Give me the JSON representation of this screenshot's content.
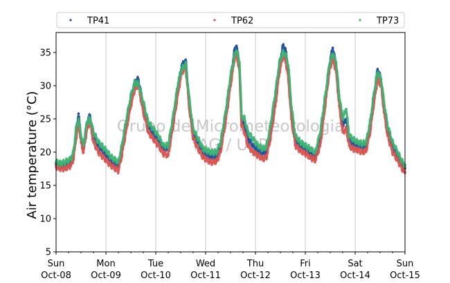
{
  "chart_data": {
    "type": "scatter",
    "ylabel": "Air temperature (°C)",
    "xlabel": "",
    "ylim": [
      5,
      38
    ],
    "yticks": [
      5,
      10,
      15,
      20,
      25,
      30,
      35
    ],
    "xlim_days": [
      0,
      7
    ],
    "xticks": [
      {
        "day": "Sun",
        "date": "Oct-08"
      },
      {
        "day": "Mon",
        "date": "Oct-09"
      },
      {
        "day": "Tue",
        "date": "Oct-10"
      },
      {
        "day": "Wed",
        "date": "Oct-11"
      },
      {
        "day": "Thu",
        "date": "Oct-12"
      },
      {
        "day": "Fri",
        "date": "Oct-13"
      },
      {
        "day": "Sat",
        "date": "Oct-14"
      },
      {
        "day": "Sun",
        "date": "Oct-15"
      }
    ],
    "grid": "vertical",
    "legend_position": "top",
    "watermark": [
      "Grupo de Micrometeorologia",
      "IAG / USP"
    ],
    "x_unit": "days since Oct-08 00:00",
    "series": [
      {
        "name": "TP41",
        "color": "#1f4e9c",
        "points": [
          [
            0.0,
            18.2
          ],
          [
            0.1,
            17.9
          ],
          [
            0.2,
            18.0
          ],
          [
            0.3,
            18.6
          ],
          [
            0.35,
            19.5
          ],
          [
            0.4,
            23.0
          ],
          [
            0.45,
            25.8
          ],
          [
            0.5,
            22.0
          ],
          [
            0.55,
            20.5
          ],
          [
            0.62,
            24.5
          ],
          [
            0.68,
            25.5
          ],
          [
            0.75,
            22.5
          ],
          [
            0.85,
            21.0
          ],
          [
            1.0,
            19.5
          ],
          [
            1.1,
            18.5
          ],
          [
            1.25,
            17.9
          ],
          [
            1.32,
            20.5
          ],
          [
            1.4,
            24.0
          ],
          [
            1.5,
            28.0
          ],
          [
            1.58,
            30.5
          ],
          [
            1.65,
            31.0
          ],
          [
            1.75,
            27.0
          ],
          [
            1.85,
            24.0
          ],
          [
            1.95,
            22.8
          ],
          [
            2.05,
            22.0
          ],
          [
            2.15,
            20.5
          ],
          [
            2.25,
            20.5
          ],
          [
            2.35,
            25.0
          ],
          [
            2.45,
            30.0
          ],
          [
            2.52,
            33.0
          ],
          [
            2.6,
            33.8
          ],
          [
            2.68,
            27.0
          ],
          [
            2.75,
            23.0
          ],
          [
            2.85,
            21.5
          ],
          [
            2.95,
            20.0
          ],
          [
            3.1,
            19.2
          ],
          [
            3.22,
            19.3
          ],
          [
            3.3,
            21.0
          ],
          [
            3.4,
            25.5
          ],
          [
            3.5,
            31.0
          ],
          [
            3.58,
            35.3
          ],
          [
            3.62,
            36.0
          ],
          [
            3.68,
            33.0
          ],
          [
            3.72,
            25.0
          ],
          [
            3.78,
            24.0
          ],
          [
            3.85,
            22.0
          ],
          [
            3.95,
            21.0
          ],
          [
            4.05,
            20.2
          ],
          [
            4.15,
            19.8
          ],
          [
            4.22,
            20.0
          ],
          [
            4.3,
            23.0
          ],
          [
            4.4,
            28.0
          ],
          [
            4.48,
            33.0
          ],
          [
            4.55,
            36.0
          ],
          [
            4.6,
            35.5
          ],
          [
            4.66,
            32.5
          ],
          [
            4.72,
            26.0
          ],
          [
            4.8,
            21.8
          ],
          [
            4.9,
            21.0
          ],
          [
            5.0,
            20.5
          ],
          [
            5.1,
            19.8
          ],
          [
            5.2,
            19.2
          ],
          [
            5.3,
            22.0
          ],
          [
            5.4,
            28.0
          ],
          [
            5.48,
            33.0
          ],
          [
            5.55,
            35.7
          ],
          [
            5.62,
            33.0
          ],
          [
            5.68,
            28.0
          ],
          [
            5.75,
            24.0
          ],
          [
            5.82,
            25.0
          ],
          [
            5.88,
            22.0
          ],
          [
            5.95,
            21.2
          ],
          [
            6.05,
            21.0
          ],
          [
            6.15,
            20.8
          ],
          [
            6.22,
            21.0
          ],
          [
            6.3,
            24.0
          ],
          [
            6.38,
            28.5
          ],
          [
            6.45,
            32.5
          ],
          [
            6.52,
            31.0
          ],
          [
            6.58,
            27.0
          ],
          [
            6.65,
            23.5
          ],
          [
            6.75,
            21.0
          ],
          [
            6.85,
            19.5
          ],
          [
            6.95,
            18.0
          ],
          [
            7.0,
            17.6
          ]
        ]
      },
      {
        "name": "TP62",
        "color": "#d9534f",
        "points": [
          [
            0.0,
            17.8
          ],
          [
            0.1,
            17.5
          ],
          [
            0.2,
            17.6
          ],
          [
            0.3,
            18.0
          ],
          [
            0.35,
            19.0
          ],
          [
            0.4,
            22.0
          ],
          [
            0.45,
            24.5
          ],
          [
            0.5,
            21.5
          ],
          [
            0.55,
            20.0
          ],
          [
            0.62,
            23.5
          ],
          [
            0.68,
            24.5
          ],
          [
            0.75,
            21.5
          ],
          [
            0.85,
            20.0
          ],
          [
            1.0,
            18.8
          ],
          [
            1.1,
            18.0
          ],
          [
            1.25,
            17.2
          ],
          [
            1.32,
            19.5
          ],
          [
            1.4,
            23.0
          ],
          [
            1.5,
            27.0
          ],
          [
            1.58,
            29.5
          ],
          [
            1.65,
            30.0
          ],
          [
            1.75,
            26.0
          ],
          [
            1.85,
            23.0
          ],
          [
            1.95,
            22.0
          ],
          [
            2.05,
            21.0
          ],
          [
            2.15,
            19.8
          ],
          [
            2.25,
            19.5
          ],
          [
            2.35,
            24.0
          ],
          [
            2.45,
            29.0
          ],
          [
            2.52,
            32.0
          ],
          [
            2.6,
            32.7
          ],
          [
            2.68,
            26.0
          ],
          [
            2.75,
            22.0
          ],
          [
            2.85,
            20.5
          ],
          [
            2.95,
            19.2
          ],
          [
            3.1,
            18.5
          ],
          [
            3.22,
            18.6
          ],
          [
            3.3,
            20.0
          ],
          [
            3.4,
            24.5
          ],
          [
            3.5,
            30.0
          ],
          [
            3.58,
            34.0
          ],
          [
            3.62,
            35.0
          ],
          [
            3.68,
            32.0
          ],
          [
            3.72,
            24.0
          ],
          [
            3.78,
            23.0
          ],
          [
            3.85,
            21.0
          ],
          [
            3.95,
            20.0
          ],
          [
            4.05,
            19.5
          ],
          [
            4.15,
            19.0
          ],
          [
            4.22,
            19.2
          ],
          [
            4.3,
            22.0
          ],
          [
            4.4,
            27.0
          ],
          [
            4.48,
            32.0
          ],
          [
            4.55,
            34.3
          ],
          [
            4.6,
            34.0
          ],
          [
            4.66,
            31.0
          ],
          [
            4.72,
            25.0
          ],
          [
            4.8,
            21.0
          ],
          [
            4.9,
            20.2
          ],
          [
            5.0,
            19.8
          ],
          [
            5.1,
            19.2
          ],
          [
            5.2,
            18.8
          ],
          [
            5.3,
            21.0
          ],
          [
            5.4,
            27.0
          ],
          [
            5.48,
            32.0
          ],
          [
            5.55,
            34.3
          ],
          [
            5.62,
            32.0
          ],
          [
            5.68,
            27.0
          ],
          [
            5.75,
            23.0
          ],
          [
            5.82,
            23.5
          ],
          [
            5.88,
            21.0
          ],
          [
            5.95,
            20.5
          ],
          [
            6.05,
            20.3
          ],
          [
            6.15,
            20.0
          ],
          [
            6.22,
            20.2
          ],
          [
            6.3,
            23.0
          ],
          [
            6.38,
            27.5
          ],
          [
            6.45,
            31.0
          ],
          [
            6.52,
            30.0
          ],
          [
            6.58,
            26.0
          ],
          [
            6.65,
            22.5
          ],
          [
            6.75,
            20.0
          ],
          [
            6.85,
            18.8
          ],
          [
            6.95,
            17.4
          ],
          [
            7.0,
            17.0
          ]
        ]
      },
      {
        "name": "TP73",
        "color": "#3cb371",
        "points": [
          [
            0.0,
            18.5
          ],
          [
            0.1,
            18.3
          ],
          [
            0.2,
            18.6
          ],
          [
            0.3,
            19.0
          ],
          [
            0.35,
            20.0
          ],
          [
            0.4,
            23.5
          ],
          [
            0.45,
            25.0
          ],
          [
            0.5,
            22.5
          ],
          [
            0.55,
            21.0
          ],
          [
            0.62,
            24.5
          ],
          [
            0.68,
            25.0
          ],
          [
            0.75,
            23.0
          ],
          [
            0.85,
            21.5
          ],
          [
            1.0,
            20.3
          ],
          [
            1.1,
            19.3
          ],
          [
            1.25,
            18.5
          ],
          [
            1.32,
            21.0
          ],
          [
            1.4,
            24.5
          ],
          [
            1.5,
            28.5
          ],
          [
            1.58,
            30.5
          ],
          [
            1.65,
            30.3
          ],
          [
            1.75,
            27.5
          ],
          [
            1.85,
            24.5
          ],
          [
            1.95,
            23.5
          ],
          [
            2.05,
            22.5
          ],
          [
            2.15,
            21.0
          ],
          [
            2.25,
            21.0
          ],
          [
            2.35,
            25.5
          ],
          [
            2.45,
            30.5
          ],
          [
            2.52,
            32.5
          ],
          [
            2.6,
            33.2
          ],
          [
            2.68,
            27.5
          ],
          [
            2.75,
            23.5
          ],
          [
            2.85,
            22.0
          ],
          [
            2.95,
            20.5
          ],
          [
            3.1,
            20.0
          ],
          [
            3.22,
            20.0
          ],
          [
            3.3,
            21.5
          ],
          [
            3.4,
            26.0
          ],
          [
            3.5,
            31.5
          ],
          [
            3.58,
            34.5
          ],
          [
            3.62,
            35.3
          ],
          [
            3.68,
            33.5
          ],
          [
            3.72,
            25.5
          ],
          [
            3.78,
            25.0
          ],
          [
            3.85,
            23.0
          ],
          [
            3.95,
            22.0
          ],
          [
            4.05,
            21.0
          ],
          [
            4.15,
            20.5
          ],
          [
            4.22,
            20.8
          ],
          [
            4.3,
            24.0
          ],
          [
            4.4,
            29.0
          ],
          [
            4.48,
            33.5
          ],
          [
            4.55,
            35.0
          ],
          [
            4.6,
            34.8
          ],
          [
            4.66,
            33.0
          ],
          [
            4.72,
            27.0
          ],
          [
            4.8,
            22.5
          ],
          [
            4.9,
            21.5
          ],
          [
            5.0,
            21.0
          ],
          [
            5.1,
            20.5
          ],
          [
            5.2,
            20.0
          ],
          [
            5.3,
            23.0
          ],
          [
            5.4,
            28.5
          ],
          [
            5.48,
            33.0
          ],
          [
            5.55,
            34.8
          ],
          [
            5.62,
            33.5
          ],
          [
            5.68,
            28.5
          ],
          [
            5.75,
            25.0
          ],
          [
            5.82,
            26.5
          ],
          [
            5.88,
            22.5
          ],
          [
            5.95,
            22.0
          ],
          [
            6.05,
            21.5
          ],
          [
            6.15,
            21.3
          ],
          [
            6.22,
            21.5
          ],
          [
            6.3,
            24.5
          ],
          [
            6.38,
            29.0
          ],
          [
            6.45,
            32.0
          ],
          [
            6.52,
            31.0
          ],
          [
            6.58,
            27.5
          ],
          [
            6.65,
            24.0
          ],
          [
            6.75,
            21.5
          ],
          [
            6.85,
            20.0
          ],
          [
            6.95,
            18.5
          ],
          [
            7.0,
            18.0
          ]
        ]
      }
    ]
  }
}
